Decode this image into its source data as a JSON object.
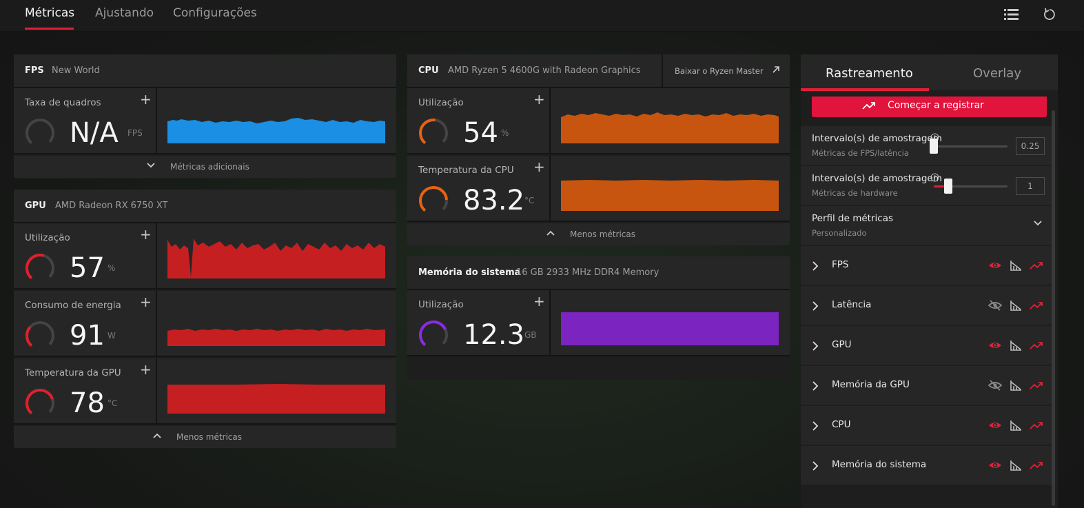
{
  "nav": {
    "tabs": [
      "Métricas",
      "Ajustando",
      "Configurações"
    ],
    "active_tab": "Métricas",
    "icons": [
      "list-icon",
      "reset-icon"
    ]
  },
  "colors": {
    "accent": "#e0203a",
    "fps": "#1a8fe3",
    "gpu": "#c61f22",
    "cpu": "#c8550f",
    "memory": "#7b24bf"
  },
  "fps_panel": {
    "title": "FPS",
    "subtitle": "New World",
    "metric": {
      "label": "Taxa de quadros",
      "value": "N/A",
      "unit": "FPS"
    },
    "footer_label": "Métricas adicionais"
  },
  "gpu_panel": {
    "title": "GPU",
    "subtitle": "AMD Radeon RX 6750 XT",
    "metrics": [
      {
        "label": "Utilização",
        "value": "57",
        "unit": "%"
      },
      {
        "label": "Consumo de energia",
        "value": "91",
        "unit": "W"
      },
      {
        "label": "Temperatura da GPU",
        "value": "78",
        "unit": "°C"
      }
    ],
    "footer_label": "Menos métricas"
  },
  "cpu_panel": {
    "title": "CPU",
    "subtitle": "AMD Ryzen 5 4600G with Radeon Graphics",
    "link_label": "Baixar o Ryzen Master",
    "metrics": [
      {
        "label": "Utilização",
        "value": "54",
        "unit": "%"
      },
      {
        "label": "Temperatura da CPU",
        "value": "83.2",
        "unit": "°C"
      }
    ],
    "footer_label": "Menos métricas"
  },
  "memory_panel": {
    "title": "Memória do sistema",
    "subtitle": "16 GB 2933 MHz DDR4 Memory",
    "metric": {
      "label": "Utilização",
      "value": "12.3",
      "unit": "GB"
    }
  },
  "tracking": {
    "tabs": [
      "Rastreamento",
      "Overlay"
    ],
    "active_tab": "Rastreamento",
    "record_button": "Começar a registrar",
    "sampling_fps": {
      "title": "Intervalo(s) de amostragem",
      "subtitle": "Métricas de FPS/latência",
      "value": "0.25"
    },
    "sampling_hw": {
      "title": "Intervalo(s) de amostragem",
      "subtitle": "Métricas de hardware",
      "value": "1"
    },
    "profile": {
      "title": "Perfil de métricas",
      "value": "Personalizado"
    },
    "categories": [
      {
        "label": "FPS",
        "visible": true
      },
      {
        "label": "Latência",
        "visible": false
      },
      {
        "label": "GPU",
        "visible": true
      },
      {
        "label": "Memória da GPU",
        "visible": false
      },
      {
        "label": "CPU",
        "visible": true
      },
      {
        "label": "Memória do sistema",
        "visible": true
      }
    ]
  }
}
